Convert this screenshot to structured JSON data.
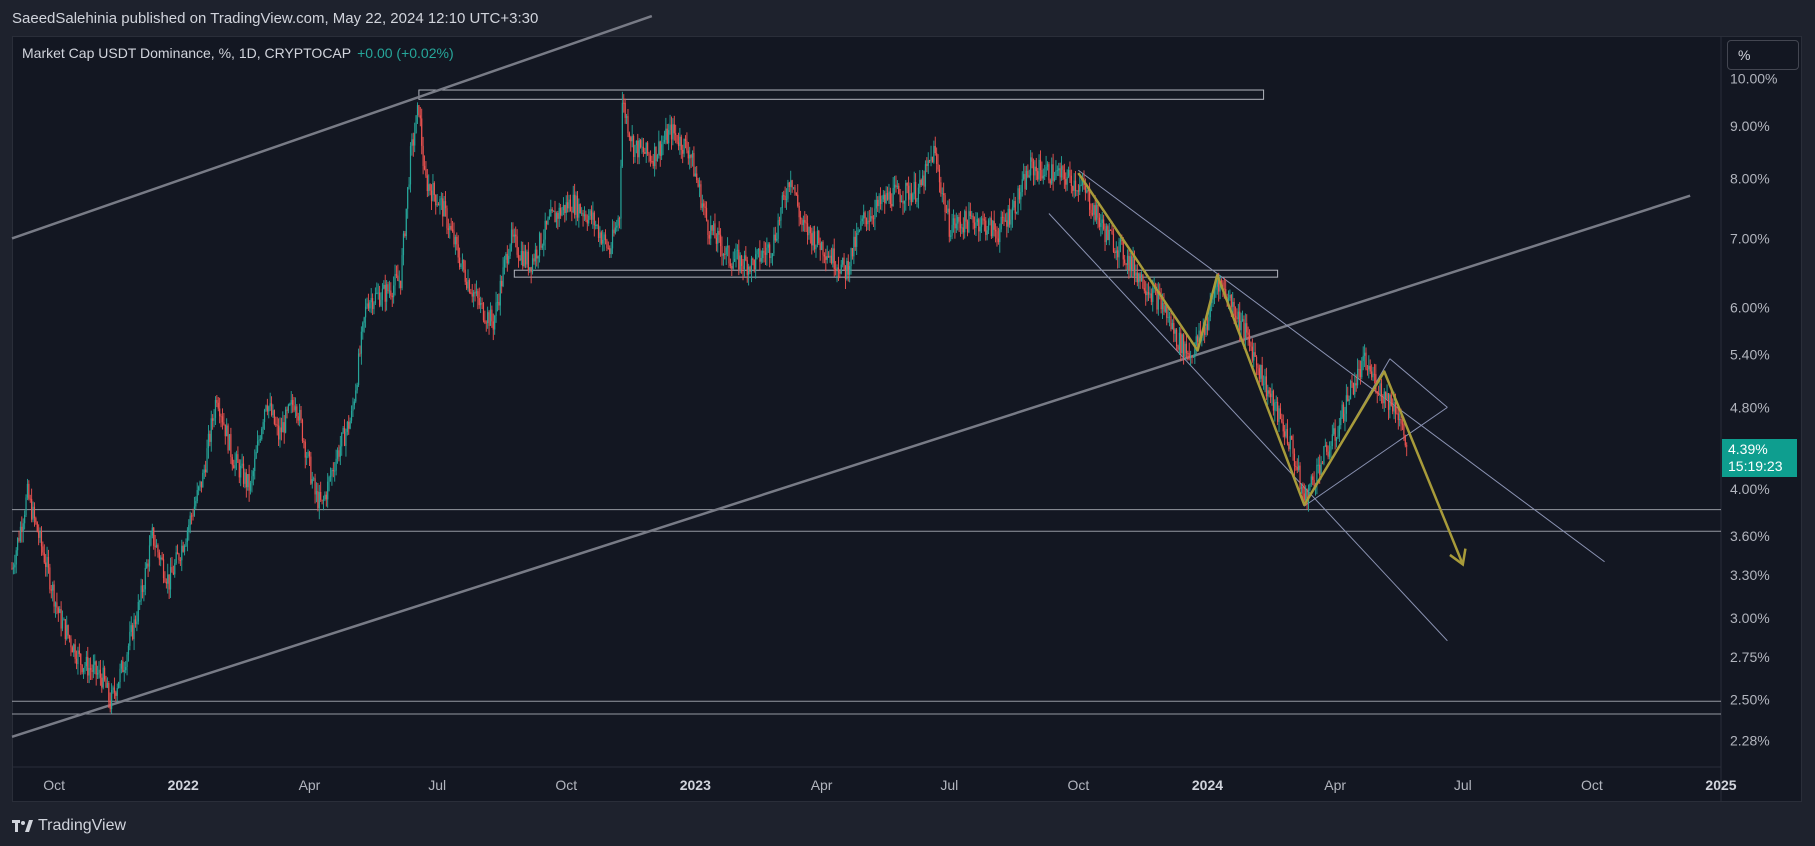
{
  "header": {
    "published": "SaeedSalehinia published on TradingView.com, May 22, 2024 12:10 UTC+3:30"
  },
  "legend": {
    "symbol": "Market Cap USDT Dominance, %, 1D, CRYPTOCAP",
    "change": "+0.00 (+0.02%)"
  },
  "scale_button": "%",
  "current_price": {
    "value": "4.39%",
    "countdown": "15:19:23"
  },
  "footer": {
    "brand": "TradingView"
  },
  "colors": {
    "background": "#131722",
    "candle_up": "#26a69a",
    "candle_down": "#ef5350",
    "wave": "#a89b3a",
    "trendline": "#787b86",
    "channel": "#8b93b3",
    "price_label": "#0e9e8f"
  },
  "chart_data": {
    "type": "candlestick",
    "symbol": "Market Cap USDT Dominance",
    "timeframe": "1D",
    "y_scale": "log",
    "y_ticks": [
      10.0,
      9.0,
      8.0,
      7.0,
      6.0,
      5.4,
      4.8,
      4.0,
      3.6,
      3.3,
      3.0,
      2.75,
      2.5,
      2.28
    ],
    "y_tick_labels": [
      "10.00%",
      "9.00%",
      "8.00%",
      "7.00%",
      "6.00%",
      "5.40%",
      "4.80%",
      "4.00%",
      "3.60%",
      "3.30%",
      "3.00%",
      "2.75%",
      "2.50%",
      "2.28%"
    ],
    "x_ticks": [
      "2021-10-01",
      "2022-01-01",
      "2022-04-01",
      "2022-07-01",
      "2022-10-01",
      "2023-01-01",
      "2023-04-01",
      "2023-07-01",
      "2023-10-01",
      "2024-01-01",
      "2024-04-01",
      "2024-07-01",
      "2024-10-01",
      "2025-01-01"
    ],
    "x_tick_labels": [
      "Oct",
      "2022",
      "Apr",
      "Jul",
      "Oct",
      "2023",
      "Apr",
      "Jul",
      "Oct",
      "2024",
      "Apr",
      "Jul",
      "Oct",
      "2025"
    ],
    "x_bold_labels": [
      "2022",
      "2023",
      "2024",
      "2025"
    ],
    "x_range": [
      "2021-09-01",
      "2025-01-01"
    ],
    "y_range": [
      2.15,
      11.0
    ],
    "price_path": [
      [
        "2021-09-01",
        3.35
      ],
      [
        "2021-09-12",
        3.95
      ],
      [
        "2021-09-25",
        3.4
      ],
      [
        "2021-10-05",
        3.0
      ],
      [
        "2021-10-20",
        2.72
      ],
      [
        "2021-11-05",
        2.62
      ],
      [
        "2021-11-10",
        2.48
      ],
      [
        "2021-11-20",
        2.72
      ],
      [
        "2021-12-01",
        3.1
      ],
      [
        "2021-12-10",
        3.6
      ],
      [
        "2021-12-22",
        3.25
      ],
      [
        "2022-01-01",
        3.55
      ],
      [
        "2022-01-15",
        4.1
      ],
      [
        "2022-01-25",
        4.95
      ],
      [
        "2022-02-05",
        4.3
      ],
      [
        "2022-02-18",
        4.0
      ],
      [
        "2022-03-01",
        4.9
      ],
      [
        "2022-03-10",
        4.5
      ],
      [
        "2022-03-22",
        4.9
      ],
      [
        "2022-04-05",
        3.95
      ],
      [
        "2022-04-10",
        3.85
      ],
      [
        "2022-04-20",
        4.3
      ],
      [
        "2022-05-01",
        4.7
      ],
      [
        "2022-05-12",
        6.1
      ],
      [
        "2022-05-25",
        6.2
      ],
      [
        "2022-06-05",
        6.4
      ],
      [
        "2022-06-12",
        8.4
      ],
      [
        "2022-06-18",
        9.4
      ],
      [
        "2022-06-22",
        8.0
      ],
      [
        "2022-07-05",
        7.5
      ],
      [
        "2022-07-20",
        6.5
      ],
      [
        "2022-08-01",
        6.0
      ],
      [
        "2022-08-10",
        5.8
      ],
      [
        "2022-08-22",
        7.0
      ],
      [
        "2022-09-05",
        6.6
      ],
      [
        "2022-09-20",
        7.3
      ],
      [
        "2022-10-05",
        7.6
      ],
      [
        "2022-10-20",
        7.3
      ],
      [
        "2022-11-01",
        6.8
      ],
      [
        "2022-11-08",
        7.4
      ],
      [
        "2022-11-10",
        9.5
      ],
      [
        "2022-11-18",
        8.6
      ],
      [
        "2022-12-01",
        8.4
      ],
      [
        "2022-12-15",
        8.9
      ],
      [
        "2022-12-28",
        8.5
      ],
      [
        "2023-01-10",
        7.2
      ],
      [
        "2023-01-25",
        6.7
      ],
      [
        "2023-02-10",
        6.6
      ],
      [
        "2023-02-25",
        6.9
      ],
      [
        "2023-03-10",
        8.1
      ],
      [
        "2023-03-18",
        7.2
      ],
      [
        "2023-04-01",
        6.9
      ],
      [
        "2023-04-18",
        6.5
      ],
      [
        "2023-05-01",
        7.3
      ],
      [
        "2023-05-20",
        7.7
      ],
      [
        "2023-06-10",
        7.8
      ],
      [
        "2023-06-20",
        8.5
      ],
      [
        "2023-07-01",
        7.2
      ],
      [
        "2023-07-20",
        7.3
      ],
      [
        "2023-08-05",
        7.1
      ],
      [
        "2023-08-18",
        7.6
      ],
      [
        "2023-08-28",
        8.2
      ],
      [
        "2023-09-12",
        8.1
      ],
      [
        "2023-09-25",
        8.0
      ],
      [
        "2023-10-05",
        7.8
      ],
      [
        "2023-10-20",
        7.1
      ],
      [
        "2023-11-01",
        6.8
      ],
      [
        "2023-11-15",
        6.4
      ],
      [
        "2023-12-01",
        6.0
      ],
      [
        "2023-12-10",
        5.6
      ],
      [
        "2023-12-20",
        5.4
      ],
      [
        "2024-01-01",
        5.8
      ],
      [
        "2024-01-08",
        6.4
      ],
      [
        "2024-01-20",
        6.0
      ],
      [
        "2024-02-01",
        5.5
      ],
      [
        "2024-02-15",
        4.9
      ],
      [
        "2024-03-01",
        4.4
      ],
      [
        "2024-03-10",
        3.9
      ],
      [
        "2024-03-20",
        4.2
      ],
      [
        "2024-04-01",
        4.5
      ],
      [
        "2024-04-12",
        5.0
      ],
      [
        "2024-04-22",
        5.3
      ],
      [
        "2024-05-05",
        4.95
      ],
      [
        "2024-05-15",
        4.8
      ],
      [
        "2024-05-22",
        4.39
      ]
    ],
    "drawings": {
      "horizontal_lines": [
        3.82,
        3.64,
        2.49,
        2.42
      ],
      "rectangles": [
        {
          "from": "2022-06-18",
          "to": "2024-02-10",
          "low": 9.55,
          "high": 9.75
        },
        {
          "from": "2022-08-25",
          "to": "2024-02-20",
          "low": 6.42,
          "high": 6.52
        }
      ],
      "trendlines": [
        {
          "from": [
            "2021-09-01",
            7.0
          ],
          "to": [
            "2022-12-01",
            11.5
          ]
        },
        {
          "from": [
            "2021-09-01",
            2.3
          ],
          "to": [
            "2024-12-10",
            7.7
          ]
        }
      ],
      "channel_lines": [
        {
          "from": [
            "2023-10-01",
            8.15
          ],
          "to": [
            "2024-10-10",
            3.4
          ]
        },
        {
          "from": [
            "2023-09-10",
            7.4
          ],
          "to": [
            "2024-06-20",
            2.85
          ]
        },
        {
          "from": [
            "2024-03-10",
            3.85
          ],
          "to": [
            "2024-06-20",
            4.8
          ]
        },
        {
          "from": [
            "2024-03-10",
            3.85
          ],
          "to": [
            "2024-05-10",
            5.35
          ]
        },
        {
          "from": [
            "2024-05-10",
            5.35
          ],
          "to": [
            "2024-06-20",
            4.8
          ]
        }
      ],
      "wave_projection": [
        [
          "2023-10-01",
          8.1
        ],
        [
          "2023-12-25",
          5.45
        ],
        [
          "2024-01-08",
          6.45
        ],
        [
          "2024-03-10",
          3.86
        ],
        [
          "2024-05-06",
          5.2
        ],
        [
          "2024-07-01",
          3.38
        ]
      ]
    }
  }
}
